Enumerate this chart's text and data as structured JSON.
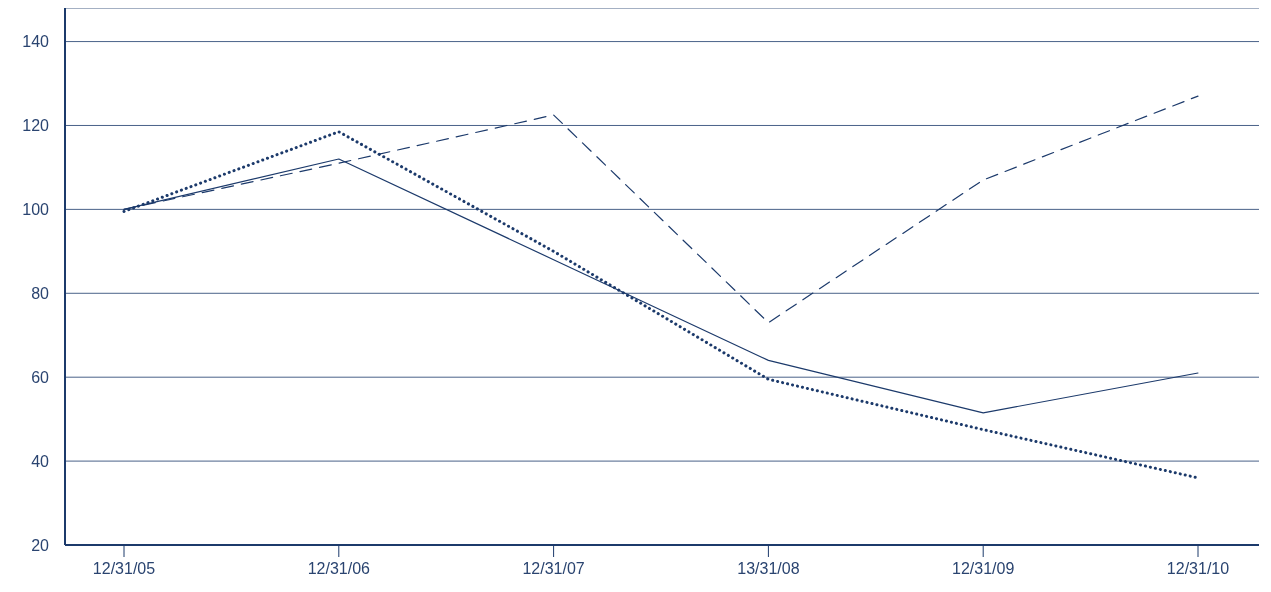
{
  "chart_data": {
    "type": "line",
    "categories": [
      "12/31/05",
      "12/31/06",
      "12/31/07",
      "13/31/08",
      "12/31/09",
      "12/31/10"
    ],
    "series": [
      {
        "color": "#1c3a6b",
        "line_style": "solid",
        "values": [
          100,
          112,
          88,
          64,
          51.5,
          61
        ]
      },
      {
        "color": "#1c3a6b",
        "line_style": "dashed",
        "values": [
          100,
          111,
          122.5,
          73,
          107,
          127
        ]
      },
      {
        "color": "#1c3a6b",
        "line_style": "dotted",
        "values": [
          99.5,
          118.5,
          90,
          59.5,
          47.5,
          36
        ]
      }
    ],
    "ylim": [
      20,
      148
    ],
    "yticks": [
      20,
      40,
      60,
      80,
      100,
      120,
      140
    ],
    "grid": "y",
    "marker": "none"
  }
}
